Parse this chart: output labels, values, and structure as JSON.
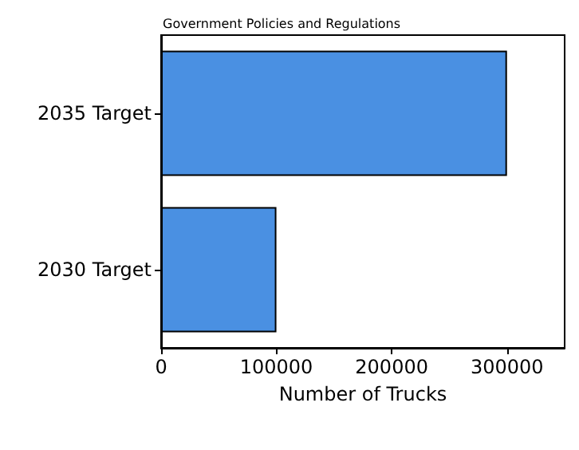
{
  "chart_data": {
    "type": "bar",
    "orientation": "horizontal",
    "title": "Government Policies and Regulations",
    "xlabel": "Number of Trucks",
    "categories": [
      "2035 Target",
      "2030 Target"
    ],
    "values": [
      300000,
      100000
    ],
    "color": "#4a90e2",
    "xlim": [
      0,
      350000
    ],
    "xticks": [
      0,
      100000,
      200000,
      300000
    ]
  }
}
